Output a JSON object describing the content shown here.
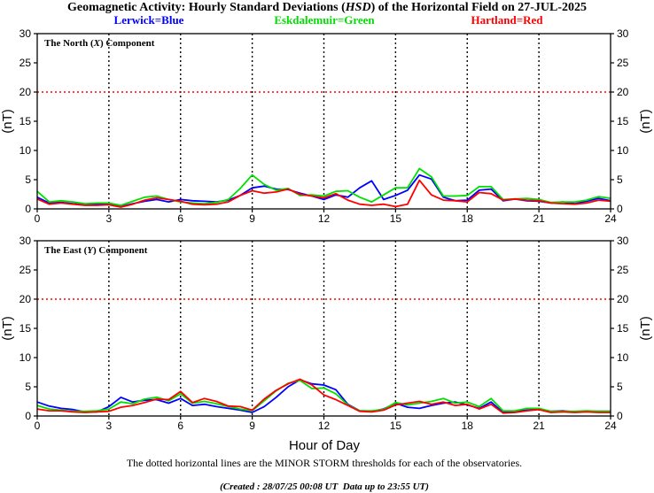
{
  "title_parts": {
    "prefix": "Geomagnetic Activity: Hourly Standard Deviations (",
    "italic": "HSD",
    "suffix": ") of the Horizontal Field on 27-JUL-2025"
  },
  "legend": [
    {
      "label": "Lerwick=Blue",
      "color": "#0000ff"
    },
    {
      "label": "Eskdalemuir=Green",
      "color": "#00e000"
    },
    {
      "label": "Hartland=Red",
      "color": "#ff0000"
    }
  ],
  "xlabel": "Hour of Day",
  "footnote": "The dotted horizontal lines are the MINOR STORM thresholds for each of the observatories.",
  "created": "(Created : 28/07/25 00:08 UT  Data up to 23:55 UT)",
  "chart_data": [
    {
      "type": "line",
      "panel_label_parts": {
        "prefix": "The North (",
        "italic": "X",
        "suffix": ") Component"
      },
      "ylabel": "(nT)",
      "xlim": [
        0,
        24
      ],
      "ylim": [
        0,
        30
      ],
      "xticks": [
        0,
        3,
        6,
        9,
        12,
        15,
        18,
        21,
        24
      ],
      "yticks": [
        0,
        5,
        10,
        15,
        20,
        25,
        30
      ],
      "threshold": 20,
      "x": [
        0,
        0.5,
        1,
        1.5,
        2,
        2.5,
        3,
        3.5,
        4,
        4.5,
        5,
        5.5,
        6,
        6.5,
        7,
        7.5,
        8,
        8.5,
        9,
        9.5,
        10,
        10.5,
        11,
        11.5,
        12,
        12.5,
        13,
        13.5,
        14,
        14.5,
        15,
        15.5,
        16,
        16.5,
        17,
        17.5,
        18,
        18.5,
        19,
        19.5,
        20,
        20.5,
        21,
        21.5,
        22,
        22.5,
        23,
        23.5,
        24
      ],
      "series": [
        {
          "name": "Lerwick",
          "color": "#0000ff",
          "values": [
            2.0,
            1.0,
            1.1,
            0.9,
            0.7,
            0.8,
            0.9,
            0.4,
            0.9,
            1.3,
            1.6,
            1.2,
            1.6,
            1.4,
            1.3,
            1.2,
            1.5,
            2.3,
            3.6,
            3.9,
            3.4,
            3.3,
            2.7,
            2.2,
            1.6,
            2.4,
            2.0,
            3.6,
            4.8,
            1.6,
            2.3,
            3.2,
            5.8,
            5.1,
            2.0,
            1.4,
            1.5,
            3.2,
            3.4,
            1.4,
            1.7,
            1.4,
            1.3,
            1.0,
            1.2,
            0.9,
            1.3,
            1.8,
            1.4
          ]
        },
        {
          "name": "Eskdalemuir",
          "color": "#00e000",
          "values": [
            3.0,
            1.2,
            1.4,
            1.2,
            0.9,
            1.0,
            1.0,
            0.6,
            1.3,
            2.0,
            2.2,
            1.6,
            1.2,
            1.0,
            0.9,
            1.1,
            1.6,
            3.5,
            5.8,
            4.2,
            3.2,
            3.5,
            2.3,
            2.4,
            2.2,
            3.0,
            3.1,
            2.0,
            1.2,
            2.4,
            3.6,
            3.6,
            6.9,
            5.5,
            2.2,
            2.2,
            2.3,
            3.8,
            3.8,
            1.6,
            1.7,
            1.8,
            1.6,
            1.1,
            1.2,
            1.2,
            1.5,
            2.1,
            1.8
          ]
        },
        {
          "name": "Hartland",
          "color": "#ff0000",
          "values": [
            1.7,
            0.8,
            1.0,
            0.8,
            0.6,
            0.6,
            0.7,
            0.3,
            0.8,
            1.5,
            1.9,
            1.6,
            1.3,
            0.8,
            0.7,
            0.8,
            1.2,
            2.3,
            3.1,
            2.7,
            2.9,
            3.4,
            2.5,
            2.2,
            1.9,
            2.6,
            1.5,
            0.8,
            0.6,
            0.8,
            0.4,
            0.8,
            4.9,
            2.4,
            1.5,
            1.4,
            1.2,
            2.8,
            2.6,
            1.5,
            1.7,
            1.5,
            1.4,
            1.0,
            0.9,
            0.8,
            1.0,
            1.5,
            1.3
          ]
        }
      ]
    },
    {
      "type": "line",
      "panel_label_parts": {
        "prefix": "The East (",
        "italic": "Y",
        "suffix": ") Component"
      },
      "ylabel": "(nT)",
      "xlim": [
        0,
        24
      ],
      "ylim": [
        0,
        30
      ],
      "xticks": [
        0,
        3,
        6,
        9,
        12,
        15,
        18,
        21,
        24
      ],
      "yticks": [
        0,
        5,
        10,
        15,
        20,
        25,
        30
      ],
      "threshold": 20,
      "x": [
        0,
        0.5,
        1,
        1.5,
        2,
        2.5,
        3,
        3.5,
        4,
        4.5,
        5,
        5.5,
        6,
        6.5,
        7,
        7.5,
        8,
        8.5,
        9,
        9.5,
        10,
        10.5,
        11,
        11.5,
        12,
        12.5,
        13,
        13.5,
        14,
        14.5,
        15,
        15.5,
        16,
        16.5,
        17,
        17.5,
        18,
        18.5,
        19,
        19.5,
        20,
        20.5,
        21,
        21.5,
        22,
        22.5,
        23,
        23.5,
        24
      ],
      "series": [
        {
          "name": "Lerwick",
          "color": "#0000ff",
          "values": [
            2.4,
            1.7,
            1.3,
            1.1,
            0.7,
            0.7,
            1.6,
            3.2,
            2.4,
            2.7,
            2.8,
            2.2,
            3.0,
            1.8,
            2.0,
            1.6,
            1.3,
            1.0,
            0.6,
            1.6,
            3.2,
            5.0,
            6.2,
            5.5,
            5.3,
            4.5,
            2.0,
            0.9,
            0.8,
            1.2,
            2.2,
            1.5,
            1.3,
            1.8,
            2.2,
            2.4,
            1.9,
            1.3,
            2.4,
            0.6,
            0.8,
            1.0,
            1.2,
            0.8,
            0.9,
            0.7,
            0.8,
            0.8,
            0.8
          ]
        },
        {
          "name": "Eskdalemuir",
          "color": "#00e000",
          "values": [
            1.8,
            1.2,
            1.0,
            0.8,
            0.8,
            0.9,
            1.2,
            2.4,
            2.1,
            2.9,
            3.2,
            2.6,
            3.8,
            2.2,
            2.5,
            2.1,
            1.6,
            1.2,
            0.9,
            2.6,
            4.3,
            5.6,
            6.1,
            4.7,
            4.8,
            3.8,
            1.9,
            0.9,
            0.9,
            1.1,
            2.3,
            1.9,
            2.2,
            2.5,
            3.0,
            2.2,
            2.4,
            1.6,
            3.0,
            0.9,
            0.9,
            1.3,
            1.3,
            0.8,
            0.8,
            0.8,
            0.9,
            0.8,
            0.8
          ]
        },
        {
          "name": "Hartland",
          "color": "#ff0000",
          "values": [
            1.2,
            0.9,
            0.9,
            0.7,
            0.6,
            0.7,
            0.8,
            1.5,
            1.8,
            2.3,
            2.9,
            2.8,
            4.2,
            2.3,
            3.0,
            2.5,
            1.7,
            1.6,
            1.0,
            2.9,
            4.4,
            5.5,
            6.3,
            5.3,
            3.6,
            2.8,
            1.8,
            0.8,
            0.7,
            1.0,
            1.9,
            2.2,
            2.5,
            2.0,
            2.4,
            1.8,
            2.0,
            1.2,
            2.0,
            0.5,
            0.6,
            0.9,
            1.1,
            0.6,
            0.7,
            0.6,
            0.7,
            0.6,
            0.6
          ]
        }
      ]
    }
  ]
}
